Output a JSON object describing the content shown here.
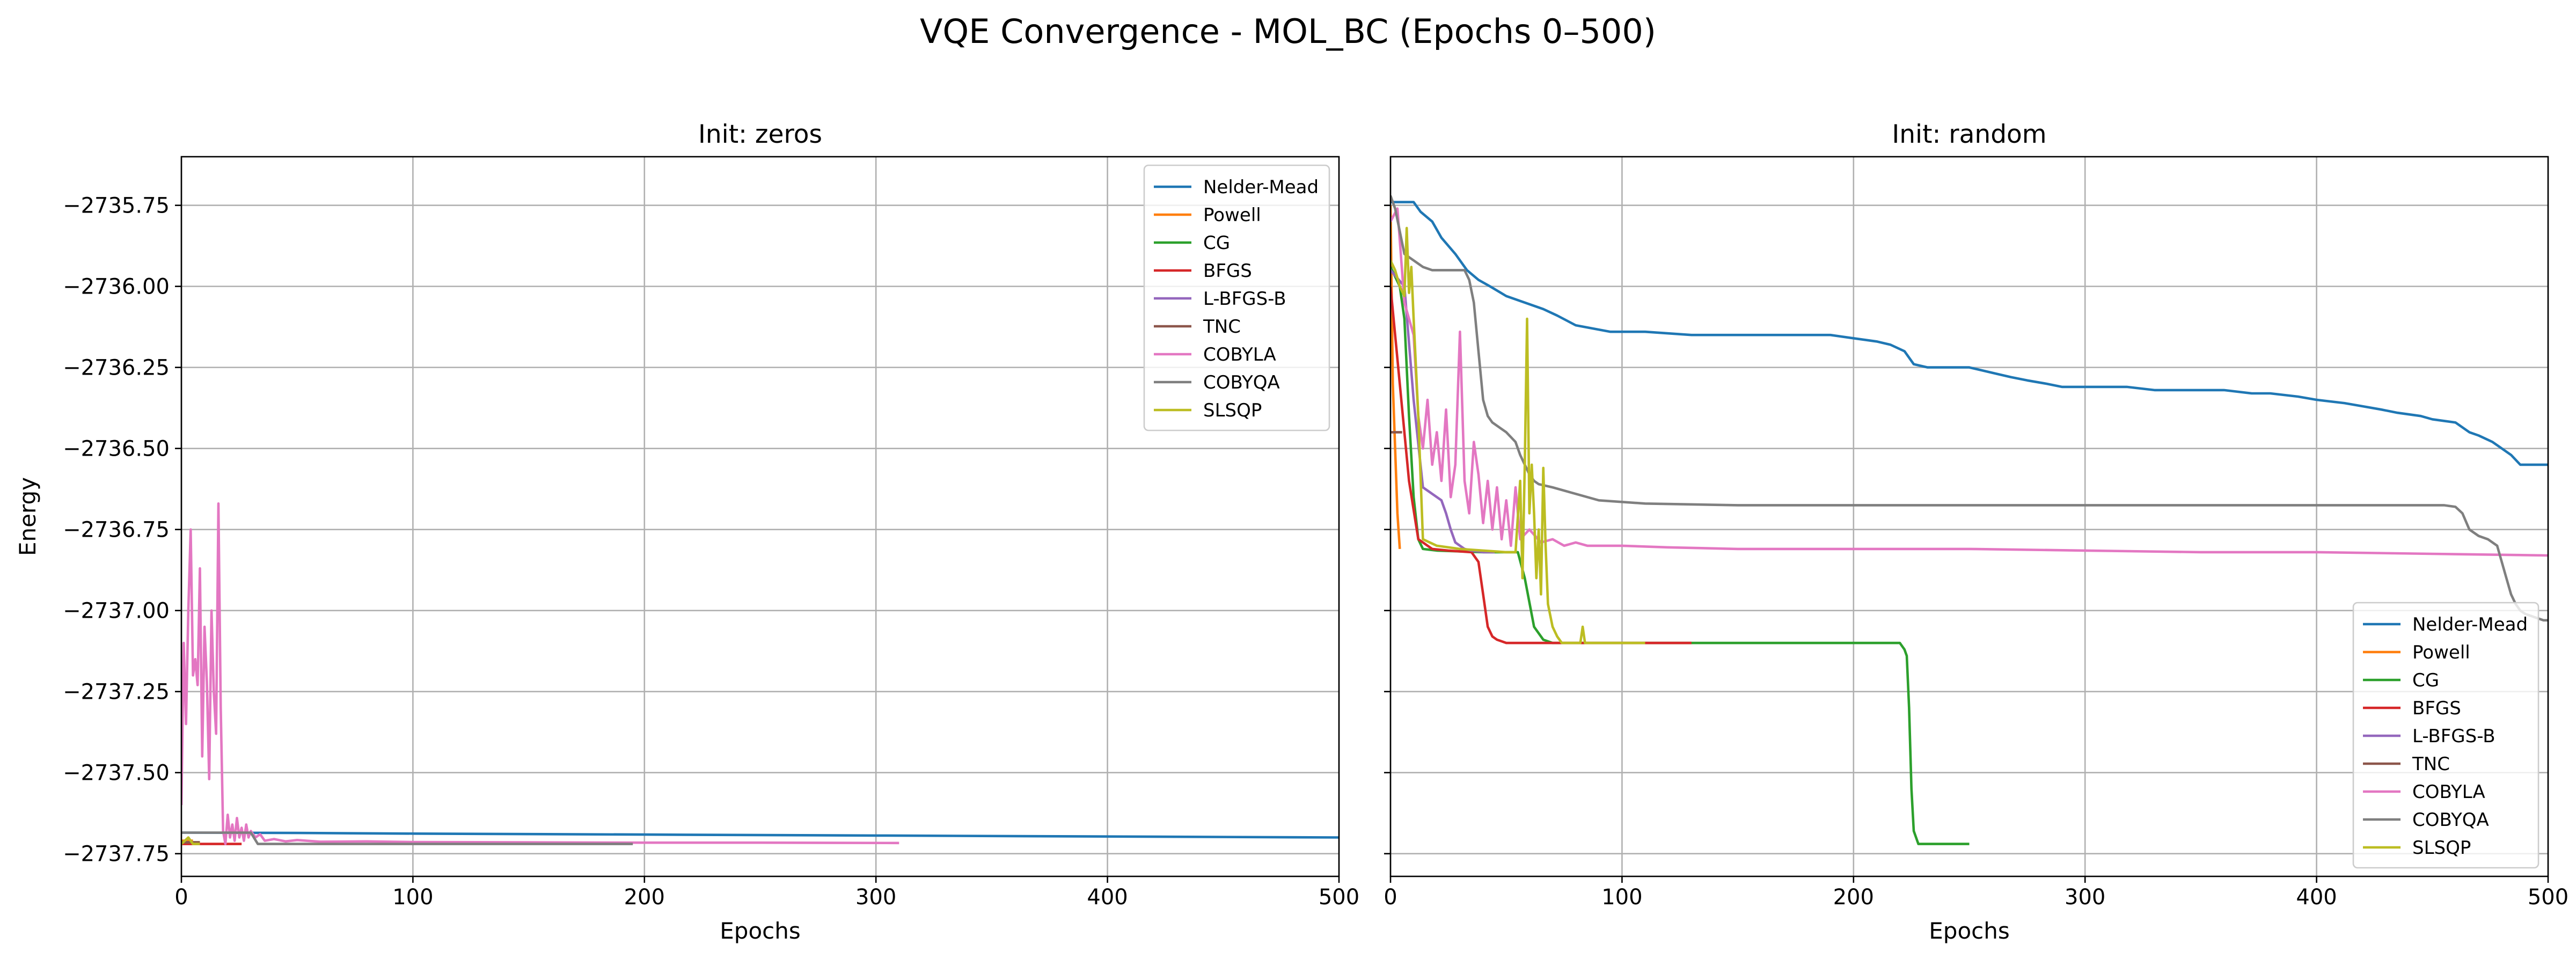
{
  "chart_data": {
    "title": "VQE Convergence - MOL_BC (Epochs 0–500)",
    "colors": {
      "Nelder-Mead": "#1f77b4",
      "Powell": "#ff7f0e",
      "CG": "#2ca02c",
      "BFGS": "#d62728",
      "L-BFGS-B": "#9467bd",
      "TNC": "#8c564b",
      "COBYLA": "#e377c2",
      "COBYQA": "#7f7f7f",
      "SLSQP": "#bcbd22"
    },
    "xticks": [
      0,
      100,
      200,
      300,
      400,
      500
    ],
    "yticks": [
      -2735.75,
      -2736.0,
      -2736.25,
      -2736.5,
      -2736.75,
      -2737.0,
      -2737.25,
      -2737.5,
      -2737.75
    ],
    "ylim": [
      -2737.82,
      -2735.6
    ],
    "xlim": [
      0,
      500
    ],
    "xlabel": "Epochs",
    "ylabel": "Energy",
    "grid": true,
    "panels": [
      {
        "type": "line",
        "title": "Init: zeros",
        "xlabel": "Epochs",
        "ylabel": "Energy",
        "legend_position": "upper right",
        "series": [
          {
            "name": "Nelder-Mead",
            "x": [
              0,
              50,
              100,
              200,
              300,
              400,
              500
            ],
            "y": [
              -2737.685,
              -2737.686,
              -2737.688,
              -2737.691,
              -2737.694,
              -2737.697,
              -2737.7
            ]
          },
          {
            "name": "Powell",
            "x": [
              0,
              5
            ],
            "y": [
              -2737.71,
              -2737.71
            ]
          },
          {
            "name": "CG",
            "x": [
              0,
              8
            ],
            "y": [
              -2737.715,
              -2737.715
            ]
          },
          {
            "name": "BFGS",
            "x": [
              0,
              26
            ],
            "y": [
              -2737.72,
              -2737.72
            ]
          },
          {
            "name": "L-BFGS-B",
            "x": [
              0,
              5
            ],
            "y": [
              -2737.715,
              -2737.715
            ]
          },
          {
            "name": "TNC",
            "x": [
              0,
              8
            ],
            "y": [
              -2737.715,
              -2737.715
            ]
          },
          {
            "name": "COBYLA",
            "x": [
              0,
              1,
              2,
              3,
              4,
              5,
              6,
              7,
              8,
              9,
              10,
              11,
              12,
              13,
              14,
              15,
              16,
              17,
              18,
              19,
              20,
              21,
              22,
              23,
              24,
              25,
              26,
              27,
              28,
              29,
              30,
              32,
              34,
              36,
              40,
              45,
              50,
              60,
              80,
              100,
              150,
              200,
              250,
              310
            ],
            "y": [
              -2737.6,
              -2737.1,
              -2737.35,
              -2737.0,
              -2736.75,
              -2737.2,
              -2737.15,
              -2737.23,
              -2736.87,
              -2737.45,
              -2737.05,
              -2737.22,
              -2737.52,
              -2737.0,
              -2737.25,
              -2737.38,
              -2736.67,
              -2737.3,
              -2737.68,
              -2737.72,
              -2737.63,
              -2737.7,
              -2737.66,
              -2737.71,
              -2737.64,
              -2737.7,
              -2737.67,
              -2737.71,
              -2737.66,
              -2737.7,
              -2737.68,
              -2737.7,
              -2737.69,
              -2737.71,
              -2737.705,
              -2737.712,
              -2737.708,
              -2737.713,
              -2737.712,
              -2737.714,
              -2737.715,
              -2737.716,
              -2737.716,
              -2737.717
            ]
          },
          {
            "name": "COBYQA",
            "x": [
              0,
              30,
              33,
              35,
              50,
              100,
              195
            ],
            "y": [
              -2737.685,
              -2737.685,
              -2737.72,
              -2737.72,
              -2737.72,
              -2737.72,
              -2737.72
            ]
          },
          {
            "name": "SLSQP",
            "x": [
              0,
              3,
              5,
              8
            ],
            "y": [
              -2737.72,
              -2737.7,
              -2737.72,
              -2737.72
            ]
          }
        ]
      },
      {
        "type": "line",
        "title": "Init: random",
        "xlabel": "Epochs",
        "legend_position": "lower right",
        "series": [
          {
            "name": "Nelder-Mead",
            "x": [
              0,
              10,
              13,
              18,
              22,
              28,
              33,
              38,
              43,
              50,
              58,
              66,
              72,
              80,
              95,
              110,
              130,
              150,
              170,
              180,
              190,
              200,
              210,
              216,
              222,
              226,
              232,
              240,
              250,
              262,
              268,
              275,
              283,
              290,
              300,
              318,
              330,
              342,
              360,
              372,
              380,
              392,
              400,
              412,
              420,
              428,
              435,
              445,
              450,
              460,
              466,
              470,
              476,
              480,
              484,
              488,
              492,
              496,
              500
            ],
            "y": [
              -2735.74,
              -2735.74,
              -2735.77,
              -2735.8,
              -2735.85,
              -2735.9,
              -2735.95,
              -2735.98,
              -2736.0,
              -2736.03,
              -2736.05,
              -2736.07,
              -2736.09,
              -2736.12,
              -2736.14,
              -2736.14,
              -2736.15,
              -2736.15,
              -2736.15,
              -2736.15,
              -2736.15,
              -2736.16,
              -2736.17,
              -2736.18,
              -2736.2,
              -2736.24,
              -2736.25,
              -2736.25,
              -2736.25,
              -2736.27,
              -2736.28,
              -2736.29,
              -2736.3,
              -2736.31,
              -2736.31,
              -2736.31,
              -2736.32,
              -2736.32,
              -2736.32,
              -2736.33,
              -2736.33,
              -2736.34,
              -2736.35,
              -2736.36,
              -2736.37,
              -2736.38,
              -2736.39,
              -2736.4,
              -2736.41,
              -2736.42,
              -2736.45,
              -2736.46,
              -2736.48,
              -2736.5,
              -2736.52,
              -2736.55,
              -2736.55,
              -2736.55,
              -2736.55
            ]
          },
          {
            "name": "Powell",
            "x": [
              0,
              1,
              2,
              3,
              4
            ],
            "y": [
              -2735.75,
              -2736.3,
              -2736.5,
              -2736.7,
              -2736.81
            ]
          },
          {
            "name": "CG",
            "x": [
              0,
              4,
              6,
              8,
              10,
              12,
              14,
              20,
              40,
              55,
              58,
              62,
              66,
              70,
              90,
              110,
              150,
              200,
              220,
              222,
              223,
              224,
              225,
              226,
              228,
              230,
              250
            ],
            "y": [
              -2735.94,
              -2736.0,
              -2736.1,
              -2736.4,
              -2736.65,
              -2736.78,
              -2736.81,
              -2736.815,
              -2736.82,
              -2736.82,
              -2736.9,
              -2737.05,
              -2737.09,
              -2737.1,
              -2737.1,
              -2737.1,
              -2737.1,
              -2737.1,
              -2737.1,
              -2737.12,
              -2737.14,
              -2737.3,
              -2737.55,
              -2737.68,
              -2737.72,
              -2737.72,
              -2737.72
            ]
          },
          {
            "name": "BFGS",
            "x": [
              0,
              8,
              12,
              18,
              25,
              35,
              38,
              40,
              42,
              44,
              46,
              50,
              60,
              80,
              100,
              130
            ],
            "y": [
              -2736.0,
              -2736.6,
              -2736.78,
              -2736.81,
              -2736.815,
              -2736.82,
              -2736.85,
              -2736.95,
              -2737.05,
              -2737.08,
              -2737.09,
              -2737.1,
              -2737.1,
              -2737.1,
              -2737.1,
              -2737.1
            ]
          },
          {
            "name": "L-BFGS-B",
            "x": [
              0,
              6,
              10,
              14,
              18,
              22,
              24,
              26,
              28,
              30,
              32,
              35,
              40,
              45
            ],
            "y": [
              -2735.95,
              -2736.0,
              -2736.35,
              -2736.62,
              -2736.64,
              -2736.66,
              -2736.7,
              -2736.75,
              -2736.79,
              -2736.8,
              -2736.81,
              -2736.815,
              -2736.82,
              -2736.82
            ]
          },
          {
            "name": "TNC",
            "x": [
              0,
              5
            ],
            "y": [
              -2736.45,
              -2736.45
            ]
          },
          {
            "name": "COBYLA",
            "x": [
              0,
              3,
              6,
              10,
              12,
              14,
              16,
              18,
              20,
              22,
              24,
              26,
              28,
              30,
              32,
              34,
              36,
              38,
              40,
              42,
              44,
              46,
              48,
              50,
              52,
              54,
              56,
              60,
              65,
              70,
              75,
              80,
              85,
              90,
              100,
              120,
              150,
              200,
              250,
              300,
              350,
              400,
              450,
              500
            ],
            "y": [
              -2735.8,
              -2735.76,
              -2736.05,
              -2736.15,
              -2736.4,
              -2736.5,
              -2736.35,
              -2736.55,
              -2736.45,
              -2736.6,
              -2736.38,
              -2736.65,
              -2736.55,
              -2736.14,
              -2736.6,
              -2736.7,
              -2736.48,
              -2736.58,
              -2736.73,
              -2736.6,
              -2736.75,
              -2736.62,
              -2736.78,
              -2736.66,
              -2736.8,
              -2736.62,
              -2736.78,
              -2736.75,
              -2736.79,
              -2736.78,
              -2736.8,
              -2736.79,
              -2736.8,
              -2736.8,
              -2736.8,
              -2736.805,
              -2736.81,
              -2736.81,
              -2736.81,
              -2736.815,
              -2736.82,
              -2736.82,
              -2736.825,
              -2736.83
            ]
          },
          {
            "name": "COBYQA",
            "x": [
              0,
              2,
              6,
              10,
              14,
              18,
              32,
              34,
              36,
              38,
              40,
              42,
              44,
              50,
              54,
              56,
              58,
              60,
              62,
              64,
              70,
              90,
              110,
              150,
              200,
              250,
              300,
              350,
              400,
              440,
              455,
              460,
              463,
              466,
              470,
              474,
              478,
              480,
              482,
              484,
              486,
              488,
              490,
              494,
              498,
              500
            ],
            "y": [
              -2735.72,
              -2735.76,
              -2735.9,
              -2735.92,
              -2735.94,
              -2735.95,
              -2735.95,
              -2735.98,
              -2736.05,
              -2736.2,
              -2736.35,
              -2736.4,
              -2736.42,
              -2736.45,
              -2736.48,
              -2736.52,
              -2736.55,
              -2736.58,
              -2736.6,
              -2736.61,
              -2736.62,
              -2736.66,
              -2736.67,
              -2736.675,
              -2736.675,
              -2736.675,
              -2736.675,
              -2736.675,
              -2736.675,
              -2736.675,
              -2736.675,
              -2736.68,
              -2736.7,
              -2736.75,
              -2736.77,
              -2736.78,
              -2736.8,
              -2736.85,
              -2736.9,
              -2736.95,
              -2736.98,
              -2737.0,
              -2737.01,
              -2737.02,
              -2737.03,
              -2737.03
            ]
          },
          {
            "name": "SLSQP",
            "x": [
              0,
              2,
              4,
              6,
              7,
              8,
              9,
              10,
              12,
              14,
              20,
              30,
              40,
              50,
              54,
              56,
              57,
              58,
              59,
              60,
              61,
              62,
              63,
              64,
              65,
              66,
              67,
              68,
              70,
              72,
              74,
              76,
              78,
              80,
              82,
              83,
              84,
              90,
              100,
              110
            ],
            "y": [
              -2735.92,
              -2735.95,
              -2736.0,
              -2736.03,
              -2735.82,
              -2736.02,
              -2735.94,
              -2736.1,
              -2736.4,
              -2736.78,
              -2736.8,
              -2736.81,
              -2736.815,
              -2736.82,
              -2736.82,
              -2736.6,
              -2736.9,
              -2736.55,
              -2736.1,
              -2736.7,
              -2736.55,
              -2736.7,
              -2736.9,
              -2736.75,
              -2736.95,
              -2736.56,
              -2736.8,
              -2736.98,
              -2737.05,
              -2737.08,
              -2737.1,
              -2737.1,
              -2737.1,
              -2737.1,
              -2737.1,
              -2737.05,
              -2737.1,
              -2737.1,
              -2737.1,
              -2737.1
            ]
          }
        ]
      }
    ]
  }
}
